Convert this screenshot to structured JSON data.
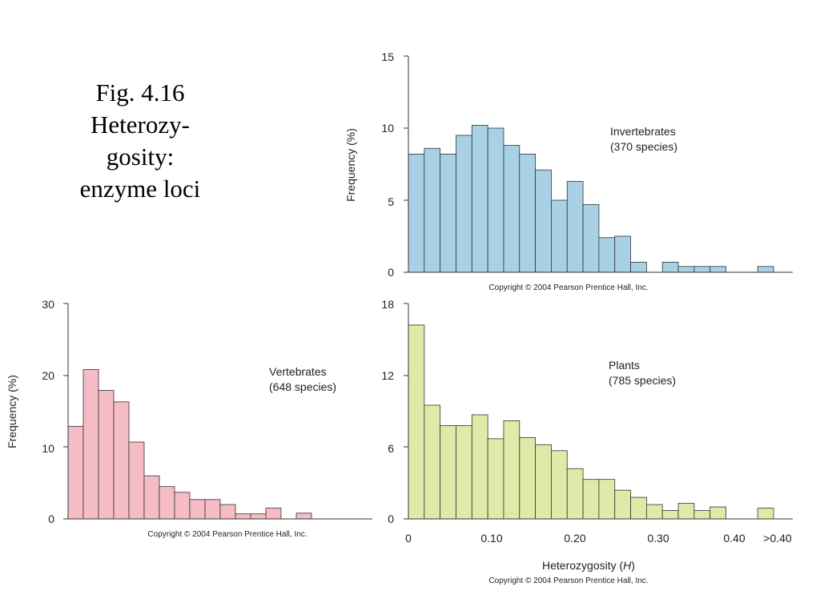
{
  "slide": {
    "title_lines": [
      "Fig. 4.16",
      "Heterozy-",
      "gosity:",
      "enzyme loci"
    ]
  },
  "xlabel": {
    "prefix": "Heterozygosity (",
    "symbol": "H",
    "suffix": ")"
  },
  "chart_data": [
    {
      "type": "bar",
      "name": "invertebrates",
      "ylabel": "Frequency (%)",
      "ylim": [
        0,
        15
      ],
      "yticks": [
        "0",
        "5",
        "10",
        "15"
      ],
      "xlim": [
        0,
        0.46
      ],
      "bin_width": 0.02,
      "label_lines": [
        "Invertebrates",
        "(370 species)"
      ],
      "copyright": "Copyright © 2004 Pearson Prentice Hall, Inc.",
      "color": "#a8d1e6",
      "values": [
        8.2,
        8.6,
        8.2,
        9.5,
        10.2,
        10.0,
        8.8,
        8.2,
        7.1,
        5.0,
        6.3,
        4.7,
        2.4,
        2.5,
        0.7,
        0,
        0.7,
        0.4,
        0.4,
        0.4,
        0,
        0,
        0.4
      ]
    },
    {
      "type": "bar",
      "name": "vertebrates",
      "ylabel": "Frequency (%)",
      "ylim": [
        0,
        30
      ],
      "yticks": [
        "0",
        "10",
        "20",
        "30"
      ],
      "xlim": [
        0,
        0.38
      ],
      "bin_width": 0.02,
      "label_lines": [
        "Vertebrates",
        "(648 species)"
      ],
      "copyright": "Copyright © 2004 Pearson Prentice Hall, Inc.",
      "color": "#f6bcc5",
      "values": [
        12.9,
        20.8,
        17.9,
        16.3,
        10.7,
        6.0,
        4.5,
        3.7,
        2.7,
        2.7,
        2.0,
        0.7,
        0.7,
        1.5,
        0,
        0.8
      ]
    },
    {
      "type": "bar",
      "name": "plants",
      "ylabel": "",
      "ylim": [
        0,
        18
      ],
      "yticks": [
        "0",
        "6",
        "12",
        "18"
      ],
      "xlim": [
        0,
        0.46
      ],
      "bin_width": 0.02,
      "xticks": [
        "0",
        "0.10",
        "0.20",
        "0.30",
        "0.40",
        ">0.40"
      ],
      "label_lines": [
        "Plants",
        "(785 species)"
      ],
      "copyright": "Copyright © 2004 Pearson Prentice Hall, Inc.",
      "color": "#deeba8",
      "values": [
        16.2,
        9.5,
        7.8,
        7.8,
        8.7,
        6.7,
        8.2,
        6.8,
        6.2,
        5.7,
        4.2,
        3.3,
        3.3,
        2.4,
        1.8,
        1.2,
        0.7,
        1.3,
        0.7,
        1.0,
        0,
        0,
        0.9
      ]
    }
  ],
  "footer_copyright": "Copyright © 2004 Pearson Prentice Hall, Inc."
}
